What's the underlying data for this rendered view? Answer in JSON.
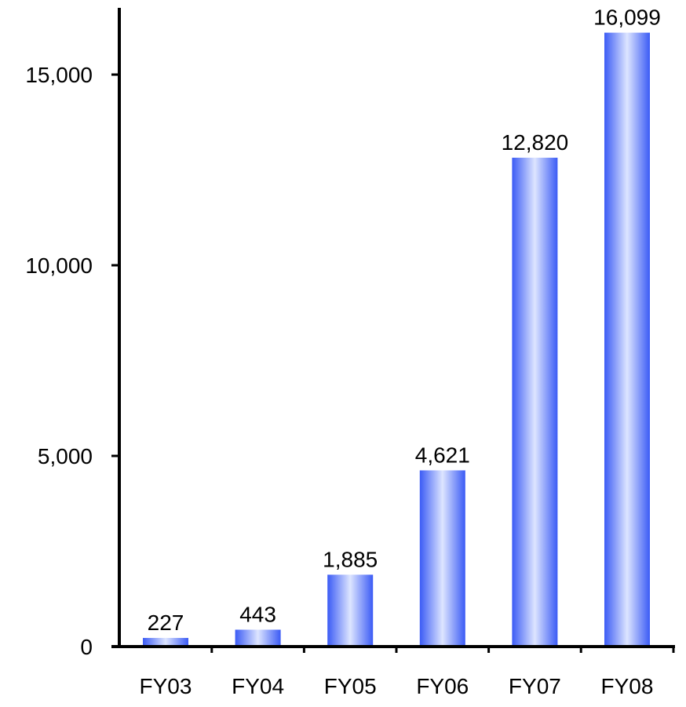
{
  "chart_data": {
    "type": "bar",
    "categories": [
      "FY03",
      "FY04",
      "FY05",
      "FY06",
      "FY07",
      "FY08"
    ],
    "values": [
      227,
      443,
      1885,
      4621,
      12820,
      16099
    ],
    "data_labels": [
      "227",
      "443",
      "1,885",
      "4,621",
      "12,820",
      "16,099"
    ],
    "y_ticks": [
      0,
      5000,
      10000,
      15000
    ],
    "y_tick_labels": [
      "0",
      "5,000",
      "10,000",
      "15,000"
    ],
    "ylim": [
      0,
      16750
    ],
    "title": "",
    "xlabel": "",
    "ylabel": "",
    "grid": false,
    "legend": "none",
    "colors": {
      "bar_edge": "#3b5bf5",
      "bar_center": "#dde5ff",
      "axis": "#000000",
      "text": "#000000"
    }
  }
}
